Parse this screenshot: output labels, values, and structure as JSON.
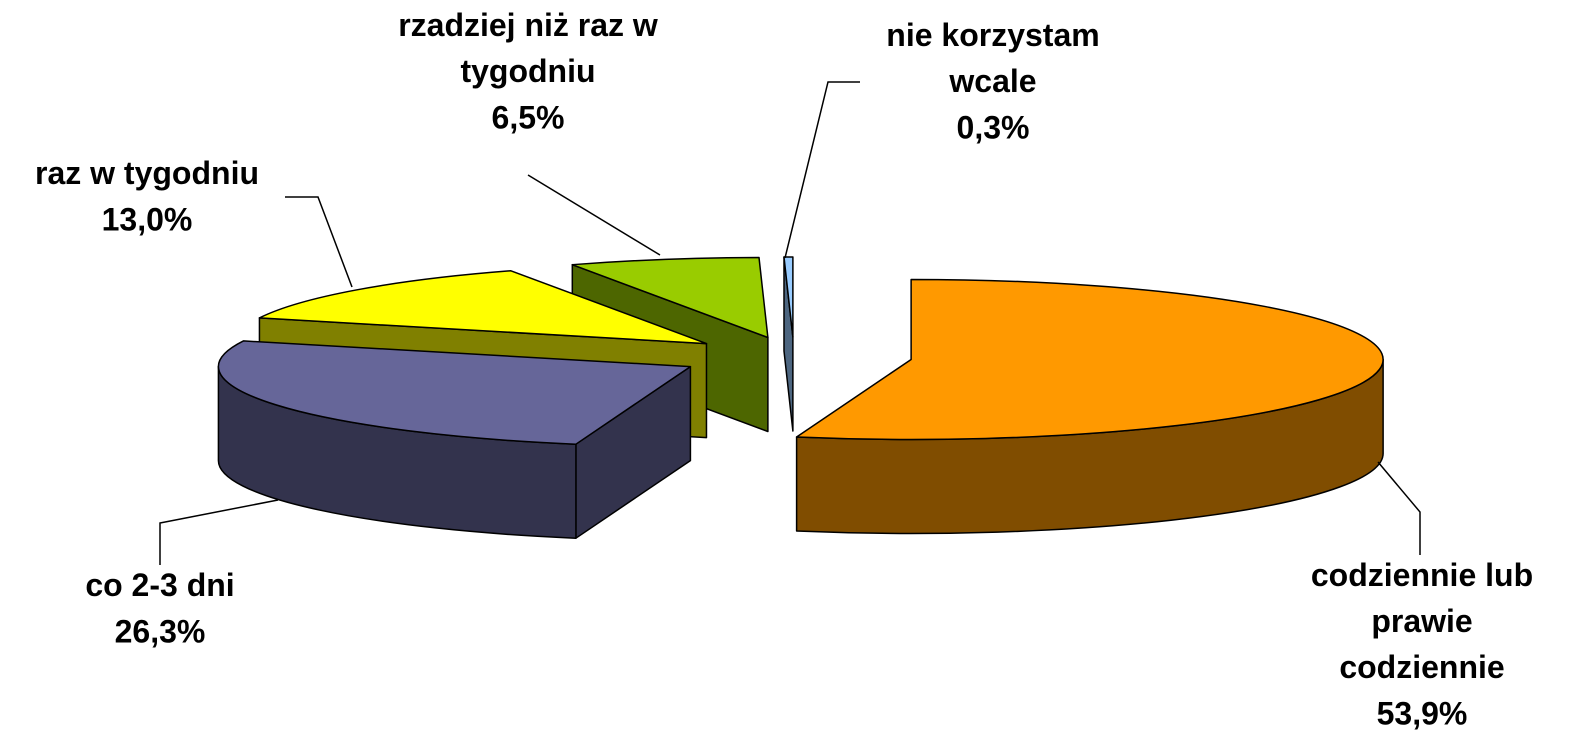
{
  "chart_data": {
    "type": "pie3d",
    "categories": [
      "codziennie lub prawie codziennie",
      "co 2-3 dni",
      "raz w tygodniu",
      "rzadziej niż raz w tygodniu",
      "nie korzystam wcale"
    ],
    "values": [
      53.9,
      26.3,
      13.0,
      6.5,
      0.3
    ],
    "value_labels": [
      "53,9%",
      "26,3%",
      "13,0%",
      "6,5%",
      "0,3%"
    ],
    "colors": [
      "#FF9900",
      "#666699",
      "#FFFF00",
      "#99CC00",
      "#99CCFF"
    ]
  }
}
